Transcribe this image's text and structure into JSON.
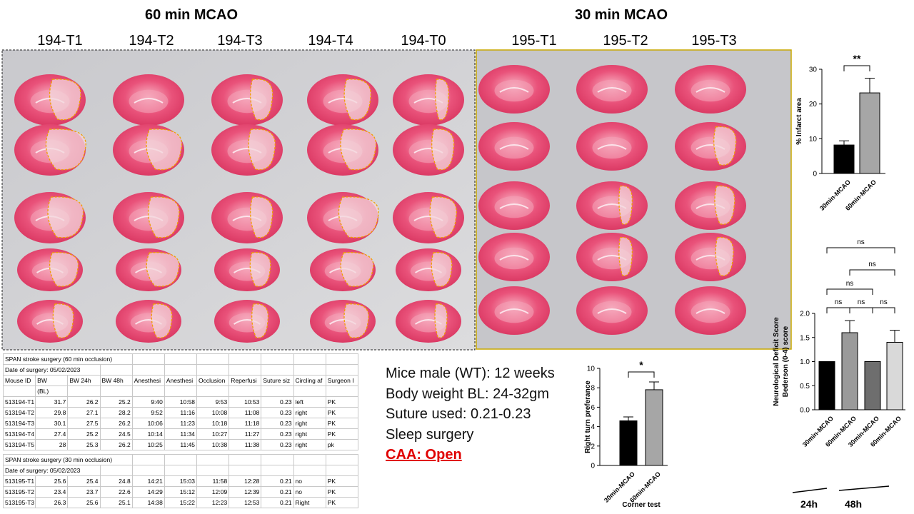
{
  "headers": [
    {
      "title": "60 min MCAO",
      "labels": [
        "194-T1",
        "194-T2",
        "194-T3",
        "194-T4",
        "194-T0"
      ]
    },
    {
      "title": "30 min MCAO",
      "labels": [
        "195-T1",
        "195-T2",
        "195-T3"
      ]
    }
  ],
  "tables": [
    {
      "title": "SPAN stroke surgery (60 min occlusion)",
      "date": "Date of surgery: 05/02/2023",
      "header": [
        "Mouse ID",
        "BW",
        "BW 24h",
        "BW 48h",
        "Anesthesi",
        "Anesthesi",
        "Occlusion",
        "Reperfusi",
        "Suture siz",
        "Circling af",
        "Surgeon I"
      ],
      "subheader": "(BL)",
      "rows": [
        [
          "513194-T1",
          "31.7",
          "26.2",
          "25.2",
          "9:40",
          "10:58",
          "9:53",
          "10:53",
          "0.23",
          "left",
          "PK"
        ],
        [
          "513194-T2",
          "29.8",
          "27.1",
          "28.2",
          "9:52",
          "11:16",
          "10:08",
          "11:08",
          "0.23",
          "right",
          "PK"
        ],
        [
          "513194-T3",
          "30.1",
          "27.5",
          "26.2",
          "10:06",
          "11:23",
          "10:18",
          "11:18",
          "0.23",
          "right",
          "PK"
        ],
        [
          "513194-T4",
          "27.4",
          "25.2",
          "24.5",
          "10:14",
          "11:34",
          "10:27",
          "11:27",
          "0.23",
          "right",
          "PK"
        ],
        [
          "513194-T5",
          "28",
          "25.3",
          "26.2",
          "10:25",
          "11:45",
          "10:38",
          "11:38",
          "0.23",
          "right",
          "pk"
        ]
      ]
    },
    {
      "title": "SPAN stroke surgery (30 min occlusion)",
      "date": "Date of surgery: 05/02/2023",
      "rows": [
        [
          "513195-T1",
          "25.6",
          "25.4",
          "24.8",
          "14:21",
          "15:03",
          "11:58",
          "12:28",
          "0.21",
          "no",
          "PK"
        ],
        [
          "513195-T2",
          "23.4",
          "23.7",
          "22.6",
          "14:29",
          "15:12",
          "12:09",
          "12:39",
          "0.21",
          "no",
          "PK"
        ],
        [
          "513195-T3",
          "26.3",
          "25.6",
          "25.1",
          "14:38",
          "15:22",
          "12:23",
          "12:53",
          "0.21",
          "Right",
          "PK"
        ]
      ]
    }
  ],
  "notes": [
    "Mice male (WT): 12 weeks",
    "Body weight BL: 24-32gm",
    "Suture used: 0.21-0.23",
    "Sleep surgery",
    "CAA: Open"
  ],
  "chart_data": [
    {
      "type": "bar",
      "ylabel": "% Infarct area",
      "categories": [
        "30min-MCAO",
        "60min-MCAO"
      ],
      "values": [
        8.2,
        23.2
      ],
      "errors": [
        1.2,
        4.2
      ],
      "colors": [
        "#000000",
        "#a6a6a6"
      ],
      "ylim": [
        0,
        30
      ],
      "yticks": [
        0,
        10,
        20,
        30
      ],
      "annotations": [
        "**"
      ]
    },
    {
      "type": "bar",
      "ylabel": "Right turn preferance",
      "xlabel": "Corner test",
      "categories": [
        "30min-MCAO",
        "60min-MCAO"
      ],
      "values": [
        4.6,
        7.8
      ],
      "errors": [
        0.4,
        0.8
      ],
      "colors": [
        "#000000",
        "#a6a6a6"
      ],
      "ylim": [
        0,
        10
      ],
      "yticks": [
        0,
        2,
        4,
        6,
        8,
        10
      ],
      "annotations": [
        "*"
      ]
    },
    {
      "type": "bar",
      "ylabel": [
        "Neurological Deficit Score",
        "Bederson (0-4) score"
      ],
      "categories": [
        "30min-MCAO",
        "60min-MCAO",
        "30min-MCAO",
        "60min-MCAO"
      ],
      "groups": [
        "24h",
        "48h"
      ],
      "values": [
        1.0,
        1.6,
        1.0,
        1.4
      ],
      "errors": [
        0,
        0.25,
        0,
        0.25
      ],
      "colors": [
        "#000000",
        "#9a9a9a",
        "#6e6e6e",
        "#d9d9d9"
      ],
      "ylim": [
        0,
        2
      ],
      "yticks": [
        {
          "value": 0,
          "label": "0.0"
        },
        {
          "value": 0.5,
          "label": "0.5"
        },
        {
          "value": 1,
          "label": "1.0"
        },
        {
          "value": 1.5,
          "label": "1.5"
        },
        {
          "value": 2,
          "label": "2.0"
        }
      ],
      "annotations": [
        "ns",
        "ns",
        "ns",
        "ns",
        "ns",
        "ns"
      ]
    }
  ]
}
